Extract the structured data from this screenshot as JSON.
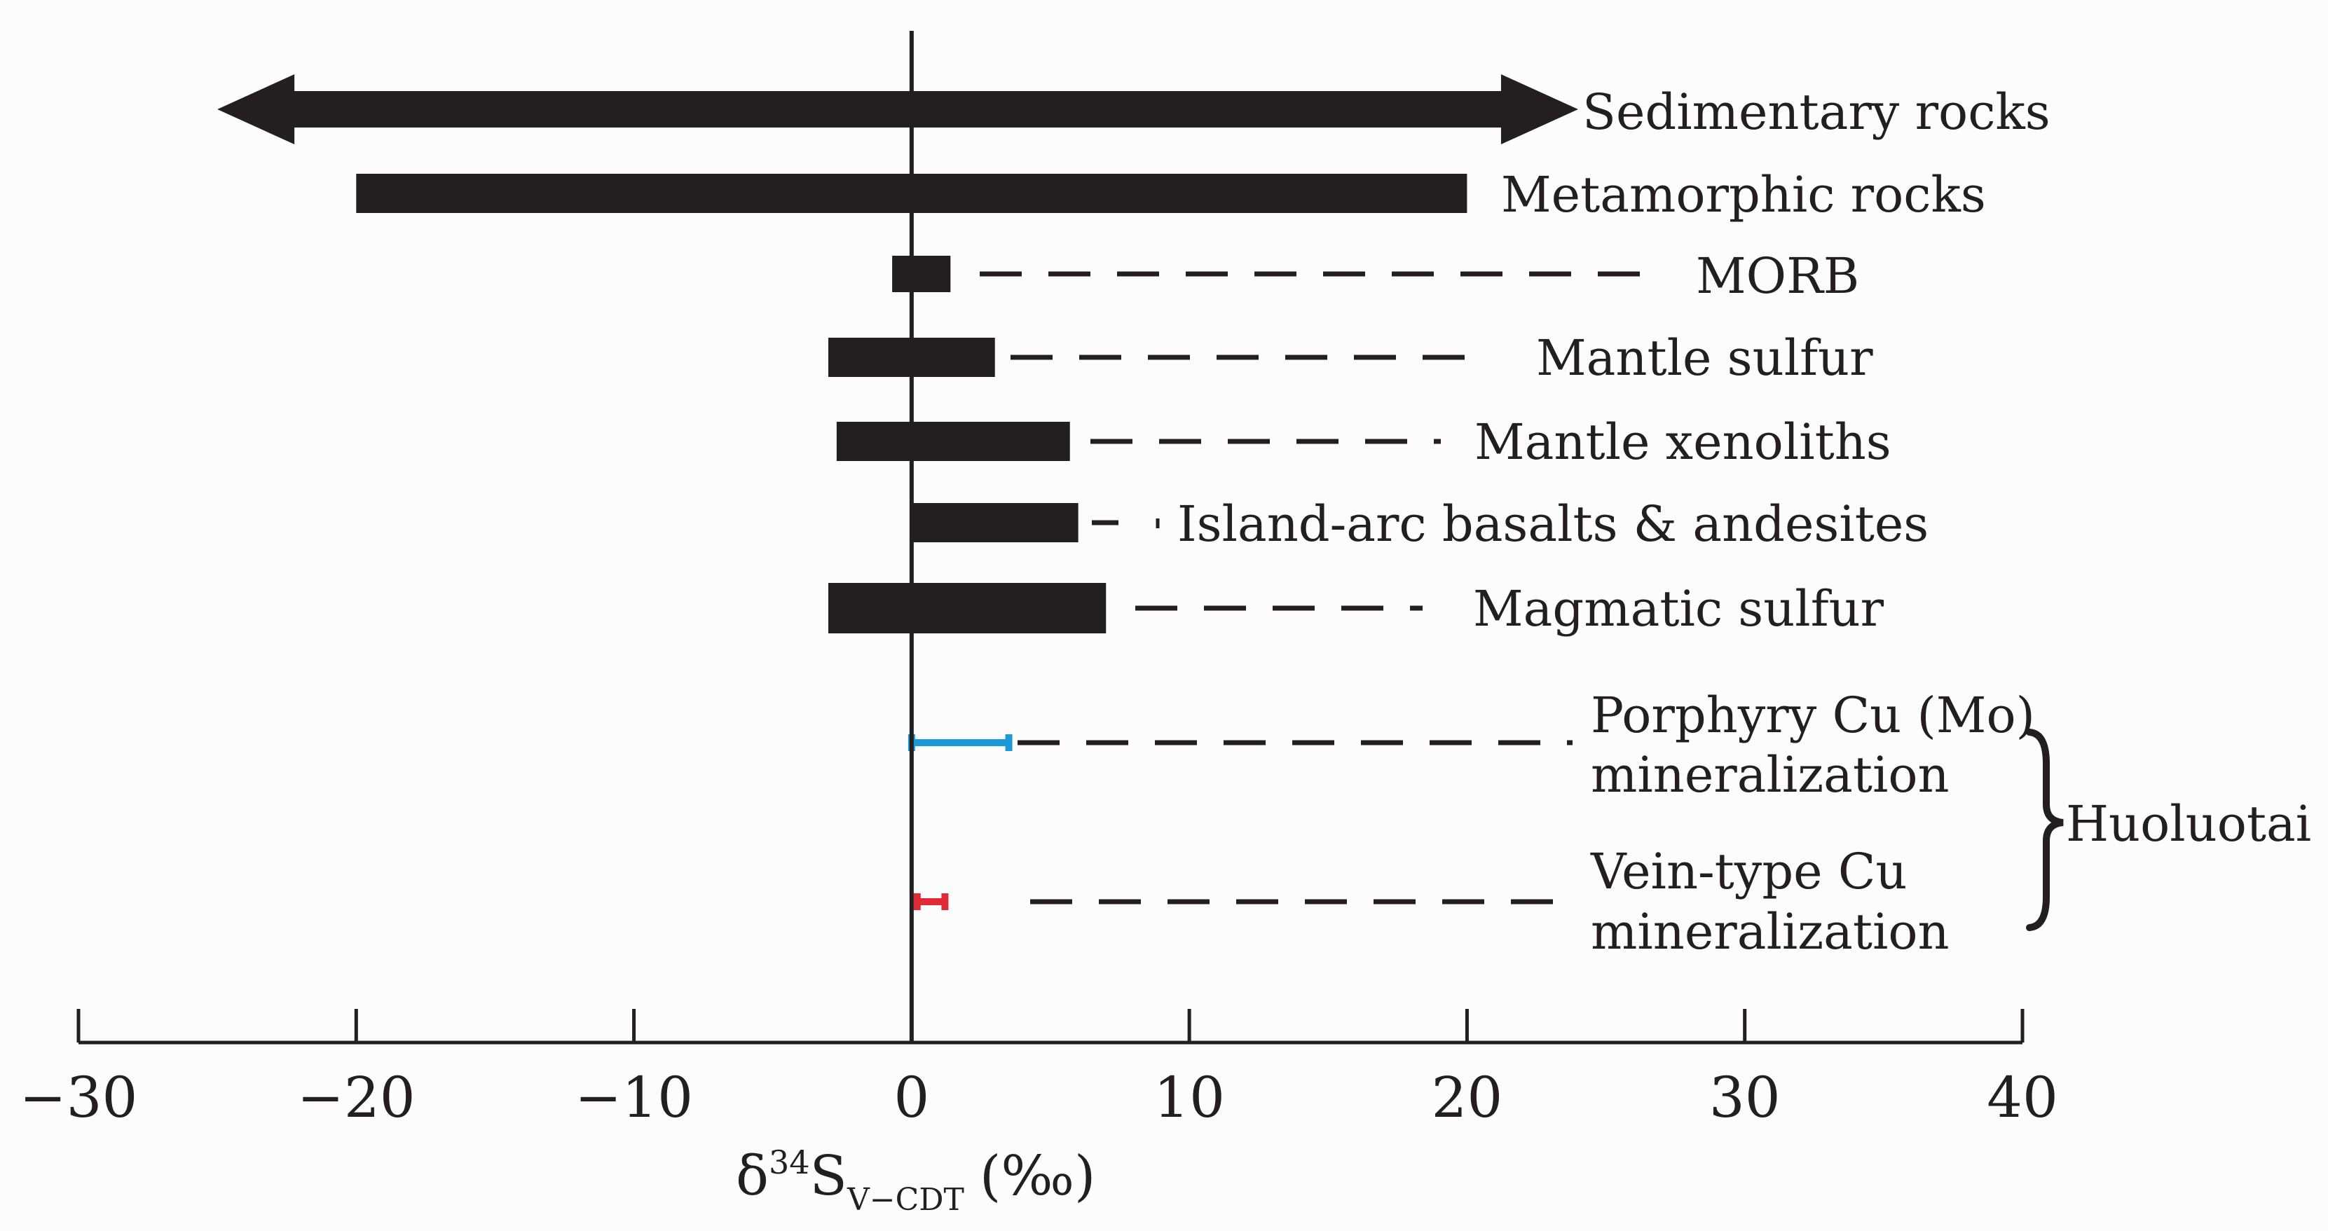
{
  "chart_data": {
    "type": "range-bar",
    "xlabel": {
      "symbol": "δ",
      "superscript": "34",
      "base": "S",
      "subscript": "V−CDT",
      "unit": "(‰)"
    },
    "xlim": [
      -30,
      40
    ],
    "xticks": [
      -30,
      -20,
      -10,
      0,
      10,
      20,
      30,
      40
    ],
    "tick_labels": [
      "−30",
      "−20",
      "−10",
      "0",
      "10",
      "20",
      "30",
      "40"
    ],
    "reference_line": 0,
    "series": [
      {
        "name": "Sedimentary rocks",
        "min": -25,
        "max": 24,
        "style": "arrow"
      },
      {
        "name": "Metamorphic rocks",
        "min": -20,
        "max": 20,
        "style": "bar"
      },
      {
        "name": "MORB",
        "min": -0.7,
        "max": 1.4,
        "style": "bar"
      },
      {
        "name": "Mantle sulfur",
        "min": -3,
        "max": 3,
        "style": "bar"
      },
      {
        "name": "Mantle xenoliths",
        "min": -2.7,
        "max": 5.7,
        "style": "bar"
      },
      {
        "name": "Island-arc basalts & andesites",
        "min": 0,
        "max": 6,
        "style": "bar"
      },
      {
        "name": "Magmatic sulfur",
        "min": -3,
        "max": 7,
        "style": "bar"
      },
      {
        "name": "Porphyry Cu (Mo)",
        "name_line2": "mineralization",
        "min": 0,
        "max": 3.5,
        "style": "errorbar",
        "color": "#1a9ad6"
      },
      {
        "name": "Vein-type Cu",
        "name_line2": "mineralization",
        "min": 0.2,
        "max": 1.2,
        "style": "errorbar",
        "color": "#e02a36"
      }
    ],
    "group_label": "Huoluotai"
  },
  "colors": {
    "ink": "#231f20",
    "background": "#ffffff"
  }
}
